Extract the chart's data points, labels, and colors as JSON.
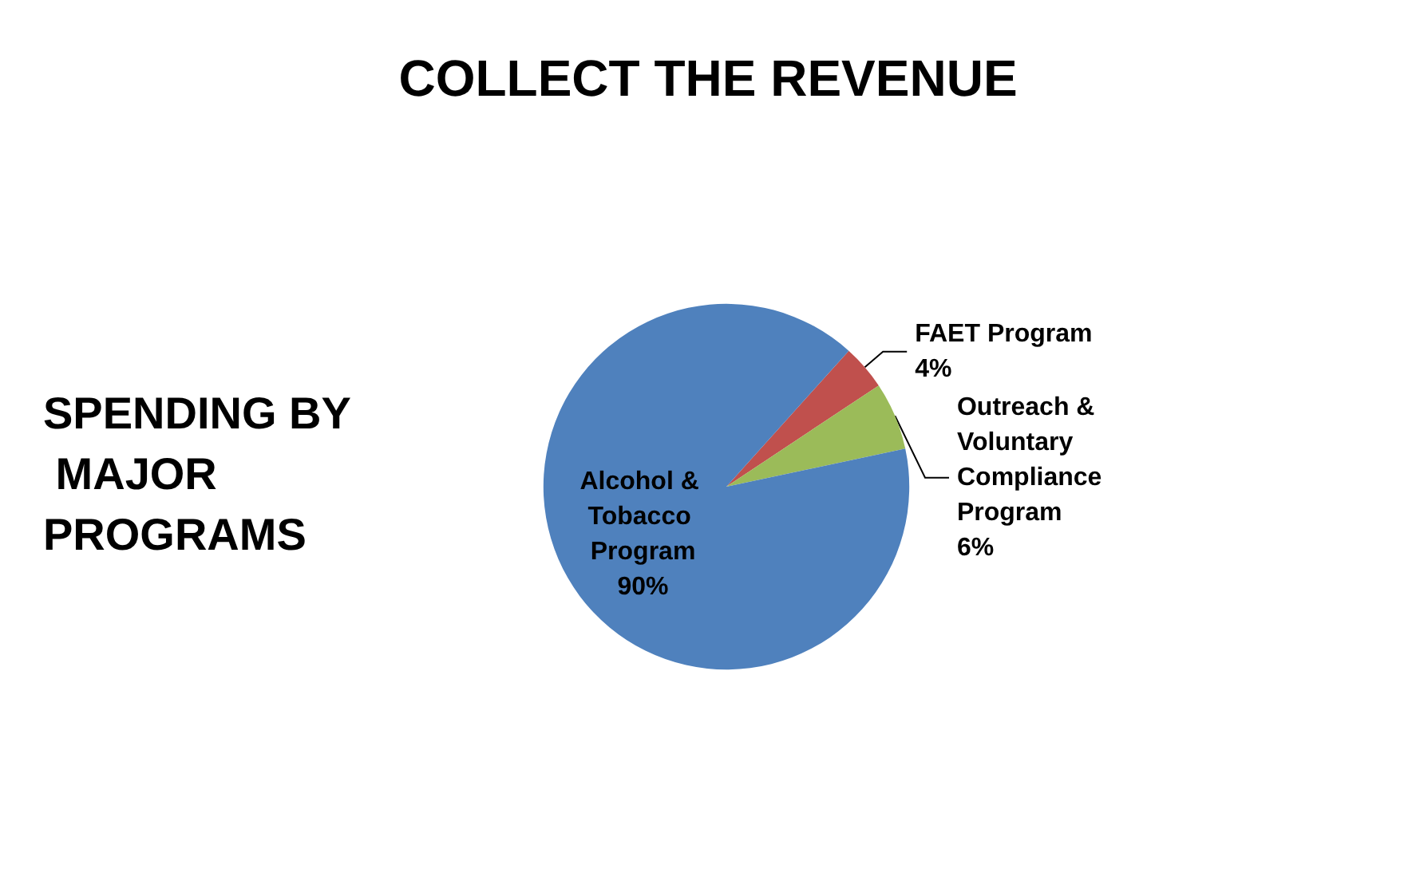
{
  "chart_data": {
    "type": "pie",
    "title": "COLLECT THE REVENUE",
    "subtitle": "SPENDING BY MAJOR PROGRAMS",
    "categories": [
      "FAET Program",
      "Outreach & Voluntary Compliance Program",
      "Alcohol & Tobacco Program"
    ],
    "values": [
      4,
      6,
      90
    ],
    "colors": [
      "#c0504d",
      "#9bbb59",
      "#4f81bd"
    ],
    "value_labels": [
      "4%",
      "6%",
      "90%"
    ],
    "legend": false
  }
}
